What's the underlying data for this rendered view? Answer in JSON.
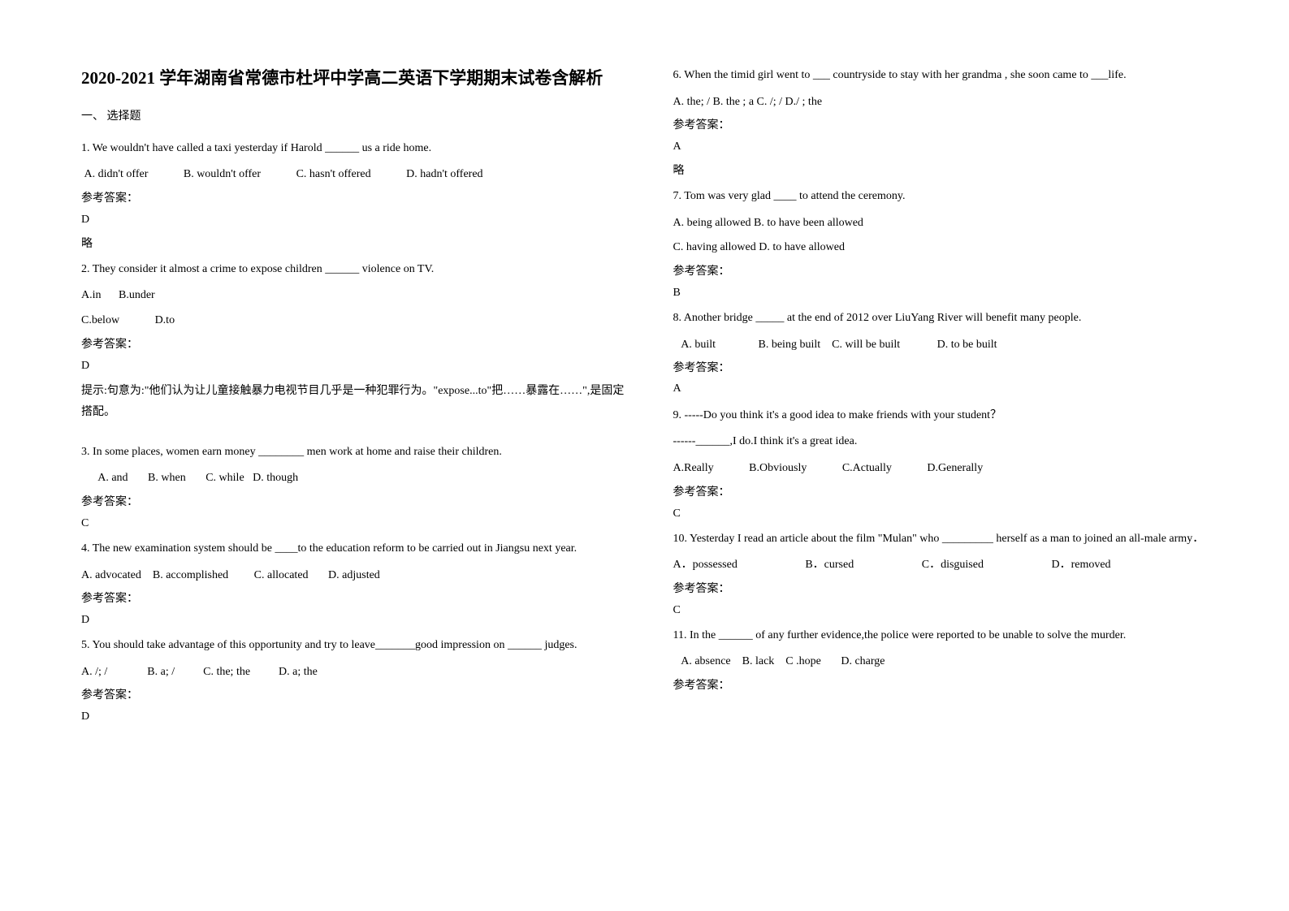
{
  "title": "2020-2021 学年湖南省常德市杜坪中学高二英语下学期期末试卷含解析",
  "section1": "一、 选择题",
  "answer_label": "参考答案：",
  "略": "略",
  "q1": {
    "text": "1. We wouldn't have called a taxi yesterday if Harold ______ us a ride home.",
    "a": "A. didn't offer",
    "b": "B. wouldn't offer",
    "c": "C. hasn't offered",
    "d": "D. hadn't offered",
    "ans": "D"
  },
  "q2": {
    "text": "2. They consider it almost a crime to expose children ______ violence on TV.",
    "a": "A.in",
    "b": "B.under",
    "c": "C.below",
    "d": "D.to",
    "ans": "D",
    "note": "提示:句意为:\"他们认为让儿童接触暴力电视节目几乎是一种犯罪行为。\"expose...to\"把……暴露在……\",是固定搭配。"
  },
  "q3": {
    "text": "3. In some places, women earn money ________ men work at home and raise their children.",
    "opts": "      A. and       B. when       C. while   D. though",
    "ans": "C"
  },
  "q4": {
    "text": "4. The new examination system should be ____to the education reform to be carried out in Jiangsu next year.",
    "opts": "A. advocated    B. accomplished         C. allocated       D. adjusted",
    "ans": "D"
  },
  "q5": {
    "text": "5. You should take advantage of this opportunity and try to leave_______good impression on ______ judges.",
    "opts": "A. /; /              B. a; /          C. the; the          D. a; the",
    "ans": "D"
  },
  "q6": {
    "text": "6. When the timid girl went to ___ countryside to stay with her grandma , she soon came to ___life.",
    "opts": "A. the; /   B. the ; a   C. /; /   D./ ; the",
    "ans": "A"
  },
  "q7": {
    "text": "7. Tom was very glad ____ to attend the ceremony.",
    "line1": "A. being allowed     B. to have been allowed",
    "line2": "C. having allowed     D. to have allowed",
    "ans": "B"
  },
  "q8": {
    "text": "8. Another bridge _____ at the end of 2012 over LiuYang River will benefit many people.",
    "opts": "   A. built               B. being built    C. will be built             D. to be built",
    "ans": "A"
  },
  "q9": {
    "text1": "9. -----Do you think it's a good idea to make friends with your student？",
    "text2": "------______,I do.I think it's a great idea.",
    "a": "A.Really",
    "b": "B.Obviously",
    "c": "C.Actually",
    "d": "D.Generally",
    "ans": "C"
  },
  "q10": {
    "text": "10. Yesterday I read an article about the film \"Mulan\" who _________ herself as a man to joined an all-male army．",
    "a": "A．possessed",
    "b": "B．cursed",
    "c": "C．disguised",
    "d": "D．removed",
    "ans": "C"
  },
  "q11": {
    "text": "11. In the ______  of any further evidence,the police were reported to be unable to solve the murder.",
    "opts": "   A. absence    B. lack    C .hope       D. charge"
  }
}
